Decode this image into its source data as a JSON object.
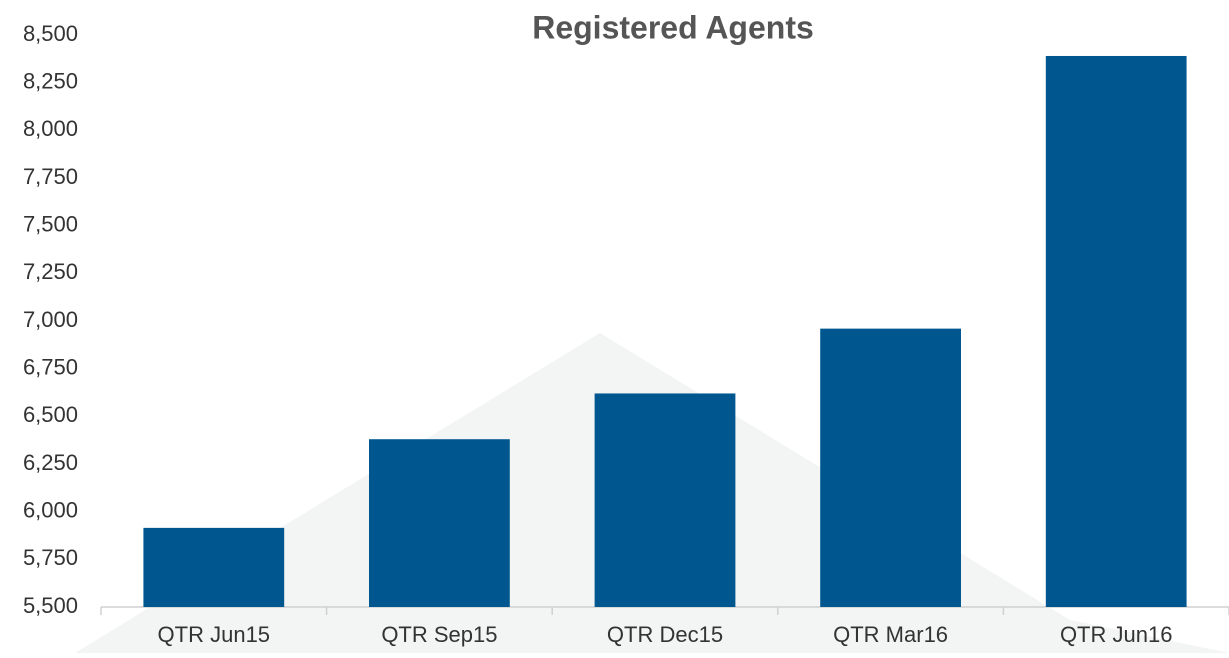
{
  "chart_data": {
    "type": "bar",
    "title": "Registered Agents",
    "categories": [
      "QTR Jun15",
      "QTR Sep15",
      "QTR Dec15",
      "QTR Mar16",
      "QTR Jun16"
    ],
    "values": [
      5915,
      6380,
      6620,
      6960,
      8390
    ],
    "color": "#00578f",
    "ylim": [
      5500,
      8500
    ],
    "yticks": [
      {
        "value": 5500,
        "label": "5,500"
      },
      {
        "value": 5750,
        "label": "5,750"
      },
      {
        "value": 6000,
        "label": "6,000"
      },
      {
        "value": 6250,
        "label": "6,250"
      },
      {
        "value": 6500,
        "label": "6,500"
      },
      {
        "value": 6750,
        "label": "6,750"
      },
      {
        "value": 7000,
        "label": "7,000"
      },
      {
        "value": 7250,
        "label": "7,250"
      },
      {
        "value": 7500,
        "label": "7,500"
      },
      {
        "value": 7750,
        "label": "7,750"
      },
      {
        "value": 8000,
        "label": "8,000"
      },
      {
        "value": 8250,
        "label": "8,250"
      },
      {
        "value": 8500,
        "label": "8,500"
      }
    ],
    "grid": false
  }
}
